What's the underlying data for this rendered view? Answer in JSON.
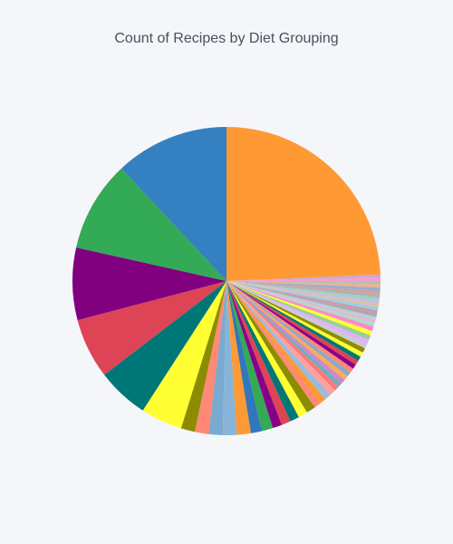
{
  "chart_data": {
    "type": "pie",
    "title": "Count of Recipes by Diet Grouping",
    "legend": "none",
    "slices": [
      {
        "value": 25.0,
        "color": "#ff9933"
      },
      {
        "value": 0.35,
        "color": "#c8a8d8"
      },
      {
        "value": 0.35,
        "color": "#ff99cc"
      },
      {
        "value": 0.35,
        "color": "#a8c8a8"
      },
      {
        "value": 0.35,
        "color": "#f0b090"
      },
      {
        "value": 0.35,
        "color": "#90b0d0"
      },
      {
        "value": 0.35,
        "color": "#d0a0a0"
      },
      {
        "value": 0.35,
        "color": "#b0b0b0"
      },
      {
        "value": 0.35,
        "color": "#a0d0c0"
      },
      {
        "value": 0.35,
        "color": "#c0c0e0"
      },
      {
        "value": 0.35,
        "color": "#e0c0a0"
      },
      {
        "value": 0.35,
        "color": "#99ccee"
      },
      {
        "value": 0.35,
        "color": "#cc99aa"
      },
      {
        "value": 0.35,
        "color": "#aaaaaa"
      },
      {
        "value": 0.35,
        "color": "#bbccdd"
      },
      {
        "value": 0.35,
        "color": "#ddbbcc"
      },
      {
        "value": 0.35,
        "color": "#aaddcc"
      },
      {
        "value": 0.5,
        "color": "#ff88cc"
      },
      {
        "value": 0.5,
        "color": "#ffff33"
      },
      {
        "value": 0.5,
        "color": "#9acd9a"
      },
      {
        "value": 0.5,
        "color": "#e0b0ff"
      },
      {
        "value": 0.5,
        "color": "#cccccc"
      },
      {
        "value": 0.5,
        "color": "#8c8c00"
      },
      {
        "value": 0.5,
        "color": "#ffff33"
      },
      {
        "value": 0.5,
        "color": "#007777"
      },
      {
        "value": 0.5,
        "color": "#dd4455"
      },
      {
        "value": 0.5,
        "color": "#880088"
      },
      {
        "value": 0.5,
        "color": "#ff8877"
      },
      {
        "value": 0.5,
        "color": "#88aacc"
      },
      {
        "value": 0.5,
        "color": "#ffaa55"
      },
      {
        "value": 0.5,
        "color": "#cc88cc"
      },
      {
        "value": 0.5,
        "color": "#77aabb"
      },
      {
        "value": 0.5,
        "color": "#ff7777"
      },
      {
        "value": 0.7,
        "color": "#ffa0a0"
      },
      {
        "value": 0.7,
        "color": "#99bbdd"
      },
      {
        "value": 0.7,
        "color": "#ff9933"
      },
      {
        "value": 0.7,
        "color": "#ff8877"
      },
      {
        "value": 1.0,
        "color": "#8c8c00"
      },
      {
        "value": 1.0,
        "color": "#ffff33"
      },
      {
        "value": 1.0,
        "color": "#007777"
      },
      {
        "value": 1.0,
        "color": "#dd4455"
      },
      {
        "value": 1.0,
        "color": "#880088"
      },
      {
        "value": 1.2,
        "color": "#33aa55"
      },
      {
        "value": 1.2,
        "color": "#3377bb"
      },
      {
        "value": 1.5,
        "color": "#ff9933"
      },
      {
        "value": 1.5,
        "color": "#88b4d8"
      },
      {
        "value": 1.5,
        "color": "#7aaad0"
      },
      {
        "value": 1.5,
        "color": "#ff8877"
      },
      {
        "value": 1.5,
        "color": "#8c8c00"
      },
      {
        "value": 4.5,
        "color": "#ffff33"
      },
      {
        "value": 5.6,
        "color": "#007777"
      },
      {
        "value": 6.5,
        "color": "#dd4455"
      },
      {
        "value": 7.8,
        "color": "#800080"
      },
      {
        "value": 9.8,
        "color": "#33aa55"
      },
      {
        "value": 12.3,
        "color": "#3580c0"
      }
    ]
  }
}
